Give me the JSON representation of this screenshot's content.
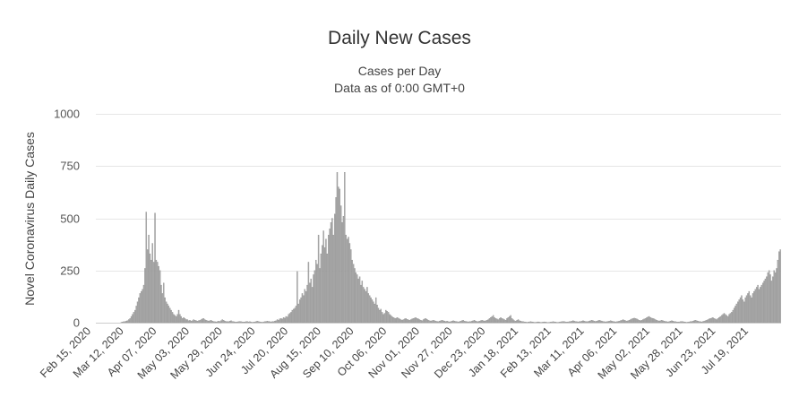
{
  "chart_data": {
    "type": "bar",
    "title": "Daily New Cases",
    "subtitle_lines": [
      "Cases per Day",
      "Data as of 0:00 GMT+0"
    ],
    "ylabel": "Novel Coronavirus Daily Cases",
    "xlabel": "",
    "ylim": [
      0,
      1000
    ],
    "yticks": [
      0,
      250,
      500,
      750,
      1000
    ],
    "grid": true,
    "legend": "none",
    "bar_color": "#aaaaaa",
    "bar_outline_color": "#888888",
    "x_start": "Feb 15, 2020",
    "x_end": "Aug 10, 2021",
    "x_tick_labels": [
      "Feb 15, 2020",
      "Mar 12, 2020",
      "Apr 07, 2020",
      "May 03, 2020",
      "May 29, 2020",
      "Jun 24, 2020",
      "Jul 20, 2020",
      "Aug 15, 2020",
      "Sep 10, 2020",
      "Oct 06, 2020",
      "Nov 01, 2020",
      "Nov 27, 2020",
      "Dec 23, 2020",
      "Jan 18, 2021",
      "Feb 13, 2021",
      "Mar 11, 2021",
      "Apr 06, 2021",
      "May 02, 2021",
      "May 28, 2021",
      "Jun 23, 2021",
      "Jul 19, 2021"
    ],
    "series": [
      {
        "values": [
          0,
          0,
          0,
          0,
          0,
          0,
          0,
          0,
          0,
          0,
          0,
          0,
          0,
          0,
          0,
          0,
          0,
          0,
          0,
          0,
          2,
          3,
          5,
          5,
          8,
          10,
          15,
          20,
          30,
          40,
          50,
          60,
          80,
          100,
          120,
          140,
          150,
          160,
          180,
          260,
          530,
          350,
          420,
          330,
          300,
          380,
          290,
          525,
          300,
          290,
          270,
          250,
          180,
          140,
          190,
          120,
          100,
          90,
          80,
          70,
          60,
          50,
          40,
          35,
          30,
          40,
          60,
          40,
          30,
          20,
          25,
          20,
          15,
          15,
          10,
          12,
          8,
          10,
          15,
          12,
          10,
          8,
          10,
          12,
          15,
          18,
          20,
          15,
          12,
          10,
          8,
          10,
          12,
          8,
          6,
          5,
          4,
          5,
          8,
          6,
          10,
          15,
          12,
          8,
          6,
          5,
          5,
          8,
          10,
          6,
          5,
          4,
          3,
          4,
          5,
          6,
          5,
          4,
          3,
          4,
          5,
          6,
          4,
          5,
          3,
          2,
          3,
          4,
          5,
          8,
          6,
          4,
          3,
          2,
          4,
          5,
          6,
          8,
          6,
          5,
          4,
          6,
          5,
          8,
          10,
          15,
          12,
          18,
          20,
          18,
          25,
          22,
          30,
          28,
          40,
          45,
          50,
          60,
          65,
          70,
          80,
          245,
          90,
          110,
          120,
          140,
          130,
          160,
          150,
          180,
          290,
          190,
          210,
          170,
          230,
          250,
          300,
          280,
          420,
          260,
          330,
          370,
          440,
          360,
          400,
          330,
          420,
          450,
          480,
          500,
          420,
          520,
          600,
          720,
          650,
          640,
          560,
          480,
          510,
          720,
          420,
          400,
          410,
          380,
          350,
          300,
          280,
          260,
          240,
          230,
          210,
          220,
          180,
          200,
          170,
          160,
          150,
          170,
          140,
          130,
          120,
          110,
          100,
          90,
          120,
          85,
          70,
          60,
          65,
          50,
          40,
          45,
          60,
          55,
          50,
          40,
          35,
          30,
          25,
          22,
          20,
          25,
          22,
          18,
          15,
          12,
          15,
          18,
          20,
          16,
          14,
          12,
          15,
          18,
          20,
          22,
          25,
          20,
          18,
          15,
          12,
          10,
          15,
          18,
          20,
          16,
          12,
          10,
          8,
          10,
          12,
          10,
          8,
          6,
          5,
          8,
          10,
          12,
          10,
          8,
          6,
          8,
          5,
          4,
          6,
          8,
          10,
          8,
          6,
          5,
          4,
          5,
          8,
          10,
          12,
          8,
          6,
          5,
          4,
          6,
          5,
          8,
          10,
          12,
          8,
          6,
          5,
          8,
          10,
          12,
          10,
          8,
          10,
          12,
          15,
          20,
          25,
          30,
          35,
          25,
          20,
          18,
          15,
          20,
          25,
          20,
          18,
          15,
          12,
          20,
          25,
          30,
          35,
          20,
          15,
          10,
          8,
          12,
          15,
          10,
          8,
          6,
          5,
          4,
          3,
          2,
          3,
          4,
          5,
          4,
          3,
          2,
          2,
          3,
          4,
          3,
          2,
          2,
          3,
          4,
          3,
          2,
          1,
          2,
          3,
          4,
          5,
          4,
          3,
          2,
          2,
          3,
          4,
          5,
          6,
          5,
          4,
          3,
          4,
          5,
          6,
          8,
          10,
          8,
          6,
          5,
          4,
          5,
          6,
          8,
          10,
          8,
          6,
          5,
          6,
          8,
          10,
          12,
          10,
          8,
          6,
          8,
          10,
          12,
          10,
          8,
          6,
          5,
          4,
          5,
          6,
          8,
          10,
          8,
          6,
          5,
          4,
          5,
          6,
          8,
          10,
          12,
          15,
          12,
          10,
          8,
          10,
          12,
          15,
          18,
          20,
          22,
          20,
          18,
          15,
          12,
          10,
          12,
          15,
          18,
          20,
          25,
          28,
          30,
          25,
          22,
          20,
          18,
          15,
          12,
          10,
          8,
          10,
          12,
          10,
          8,
          6,
          5,
          4,
          6,
          8,
          10,
          8,
          6,
          5,
          4,
          3,
          4,
          5,
          6,
          5,
          4,
          3,
          2,
          3,
          4,
          5,
          6,
          8,
          10,
          12,
          10,
          8,
          6,
          5,
          4,
          6,
          8,
          10,
          12,
          15,
          18,
          20,
          22,
          25,
          20,
          18,
          15,
          20,
          25,
          30,
          35,
          40,
          45,
          40,
          35,
          30,
          40,
          45,
          50,
          60,
          70,
          80,
          90,
          100,
          110,
          120,
          130,
          110,
          100,
          120,
          130,
          140,
          150,
          130,
          120,
          140,
          150,
          160,
          170,
          180,
          160,
          170,
          180,
          190,
          200,
          210,
          220,
          240,
          250,
          230,
          200,
          220,
          250,
          240,
          260,
          300,
          340,
          350
        ]
      }
    ]
  }
}
